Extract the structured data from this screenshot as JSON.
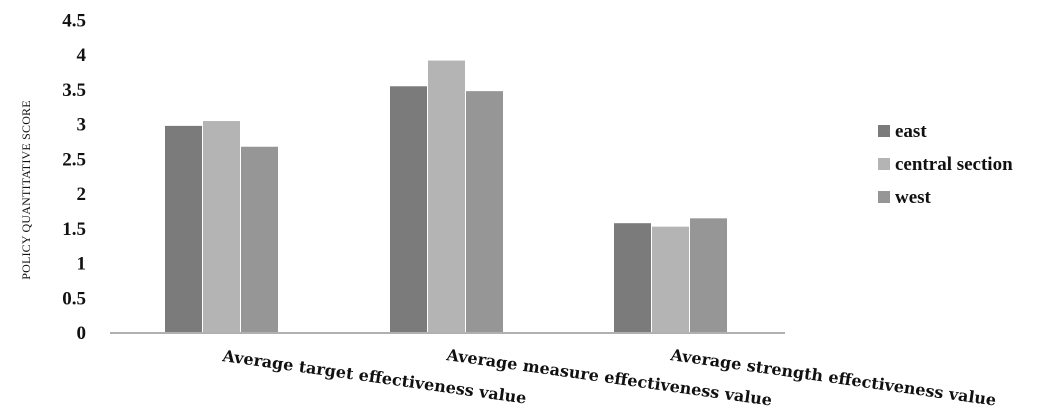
{
  "chart_data": {
    "type": "bar",
    "title": "",
    "xlabel": "",
    "ylabel": "POLICY QUANTITATIVE SCORE",
    "ylim": [
      0,
      4.5
    ],
    "yticks": [
      "0",
      "0.5",
      "1",
      "1.5",
      "2",
      "2.5",
      "3",
      "3.5",
      "4",
      "4.5"
    ],
    "categories": [
      "Average target effectiveness value",
      "Average measure effectiveness value",
      "Average strength effectiveness value"
    ],
    "series": [
      {
        "name": "east",
        "values": [
          2.98,
          3.55,
          1.58
        ]
      },
      {
        "name": "central section",
        "values": [
          3.05,
          3.92,
          1.53
        ]
      },
      {
        "name": "west",
        "values": [
          2.68,
          3.48,
          1.65
        ]
      }
    ],
    "grid": false,
    "legend": "right"
  },
  "colors": {
    "east": "#7b7b7b",
    "central section": "#b4b4b4",
    "west": "#969696",
    "axis": "#b0b0b0"
  }
}
